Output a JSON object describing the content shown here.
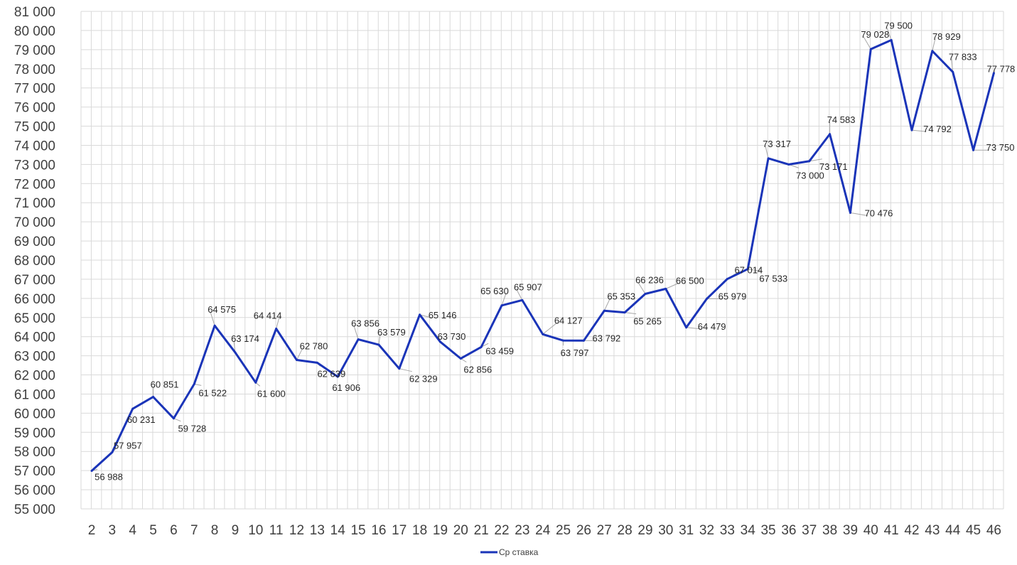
{
  "chart_data": {
    "type": "line",
    "title": "",
    "xlabel": "",
    "ylabel": "",
    "categories": [
      "2",
      "3",
      "4",
      "5",
      "6",
      "7",
      "8",
      "9",
      "10",
      "11",
      "12",
      "13",
      "14",
      "15",
      "16",
      "17",
      "18",
      "19",
      "20",
      "21",
      "22",
      "23",
      "24",
      "25",
      "26",
      "27",
      "28",
      "29",
      "30",
      "31",
      "32",
      "33",
      "34",
      "35",
      "36",
      "37",
      "38",
      "39",
      "40",
      "41",
      "42",
      "43",
      "44",
      "45",
      "46"
    ],
    "series": [
      {
        "name": "Ср ставка",
        "color": "#1a34b8",
        "values": [
          56988,
          57957,
          60231,
          60851,
          59728,
          61522,
          64575,
          63174,
          61600,
          64414,
          62780,
          62639,
          61906,
          63856,
          63579,
          62329,
          65146,
          63730,
          62856,
          63459,
          65630,
          65907,
          64127,
          63797,
          63792,
          65353,
          65265,
          66236,
          66500,
          64479,
          65979,
          67014,
          67533,
          73317,
          73000,
          73171,
          74583,
          70476,
          79028,
          79500,
          74792,
          78929,
          77833,
          73750,
          77778
        ],
        "labels": [
          "56 988",
          "57 957",
          "60 231",
          "60 851",
          "59 728",
          "61 522",
          "64 575",
          "63 174",
          "61 600",
          "64 414",
          "62 780",
          "62 639",
          "61 906",
          "63 856",
          "63 579",
          "62 329",
          "65 146",
          "63 730",
          "62 856",
          "63 459",
          "65 630",
          "65 907",
          "64 127",
          "63 797",
          "63 792",
          "65 353",
          "65 265",
          "66 236",
          "66 500",
          "64 479",
          "65 979",
          "67 014",
          "67 533",
          "73 317",
          "73 000",
          "73 171",
          "74 583",
          "70 476",
          "79 028",
          "79 500",
          "74 792",
          "78 929",
          "77 833",
          "73 750",
          "77 778"
        ]
      }
    ],
    "ylim": [
      55000,
      81000
    ],
    "ystep": 1000,
    "ytick_labels": [
      "55 000",
      "56 000",
      "57 000",
      "58 000",
      "59 000",
      "60 000",
      "61 000",
      "62 000",
      "63 000",
      "64 000",
      "65 000",
      "66 000",
      "67 000",
      "68 000",
      "69 000",
      "70 000",
      "71 000",
      "72 000",
      "73 000",
      "74 000",
      "75 000",
      "76 000",
      "77 000",
      "78 000",
      "79 000",
      "80 000",
      "81 000"
    ],
    "grid": true,
    "legend_position": "bottom"
  },
  "legend": {
    "label": "Ср ставка"
  }
}
